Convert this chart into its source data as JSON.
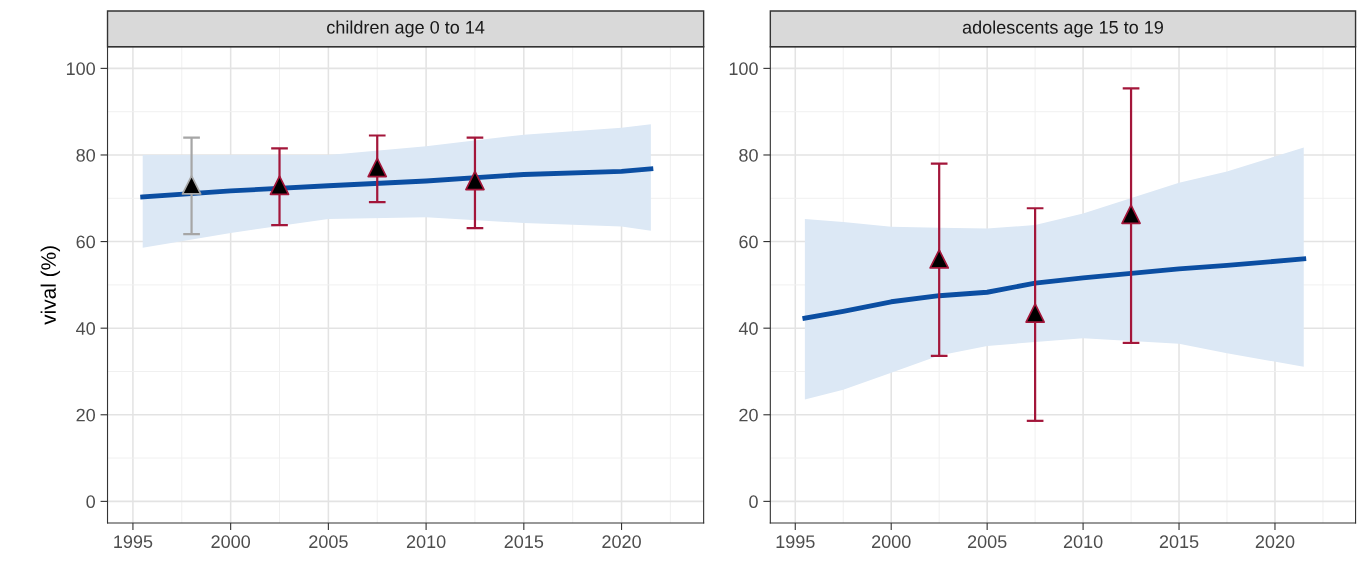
{
  "chart_data": [
    {
      "type": "line",
      "title": "children age 0 to 14",
      "ylabel": "vival (%)",
      "xlim": [
        1993.7,
        2024.2
      ],
      "ylim": [
        -5,
        105
      ],
      "xticks": [
        1995,
        2000,
        2005,
        2010,
        2015,
        2020
      ],
      "yticks": [
        0,
        20,
        40,
        60,
        80,
        100
      ],
      "grid": true,
      "legend": false,
      "series": [
        {
          "color": "#0b4ea2",
          "x": [
            1995.5,
            2000,
            2005,
            2010,
            2015,
            2020,
            2021.5
          ],
          "values": [
            70.3,
            71.7,
            72.9,
            74.0,
            75.5,
            76.2,
            76.8
          ],
          "lower": [
            58.6,
            62.0,
            65.2,
            65.6,
            64.3,
            63.5,
            62.5
          ],
          "upper": [
            80.0,
            80.0,
            80.0,
            82.0,
            84.7,
            86.3,
            87.1
          ]
        },
        {
          "type": "scatter",
          "color": "#a6a6a6",
          "marker": "triangle",
          "x": [
            1998
          ],
          "values": [
            73.1
          ],
          "errors": [
            [
              61.7,
              84.0
            ]
          ]
        },
        {
          "type": "scatter",
          "color": "#a3163a",
          "marker": "triangle",
          "x": [
            2002.5,
            2007.5,
            2012.5
          ],
          "values": [
            73.0,
            77.1,
            74.1
          ],
          "errors": [
            [
              63.8,
              81.5
            ],
            [
              69.1,
              84.5
            ],
            [
              63.1,
              84.0
            ]
          ]
        }
      ]
    },
    {
      "type": "line",
      "title": "adolescents age 15 to 19",
      "xlim": [
        1993.7,
        2024.2
      ],
      "ylim": [
        -5,
        105
      ],
      "xticks": [
        1995,
        2000,
        2005,
        2010,
        2015,
        2020
      ],
      "yticks": [
        0,
        20,
        40,
        60,
        80,
        100
      ],
      "grid": true,
      "legend": false,
      "series": [
        {
          "color": "#0b4ea2",
          "x": [
            1995.5,
            1997.5,
            2000,
            2002.5,
            2005,
            2007.5,
            2010,
            2015,
            2017.5,
            2021.5
          ],
          "values": [
            42.3,
            43.9,
            46.1,
            47.5,
            48.3,
            50.4,
            51.6,
            53.7,
            54.5,
            56.0
          ],
          "lower": [
            23.5,
            25.8,
            29.7,
            33.7,
            35.9,
            36.8,
            37.7,
            36.4,
            34.2,
            31.1
          ],
          "upper": [
            65.2,
            64.5,
            63.4,
            63.2,
            63.0,
            63.8,
            66.5,
            73.6,
            76.2,
            81.7
          ]
        },
        {
          "type": "scatter",
          "color": "#a3163a",
          "marker": "triangle",
          "x": [
            2002.5,
            2007.5,
            2012.5
          ],
          "values": [
            56.0,
            43.5,
            66.3
          ],
          "errors": [
            [
              33.6,
              78.0
            ],
            [
              18.6,
              67.7
            ],
            [
              36.6,
              95.4
            ]
          ]
        }
      ]
    }
  ]
}
